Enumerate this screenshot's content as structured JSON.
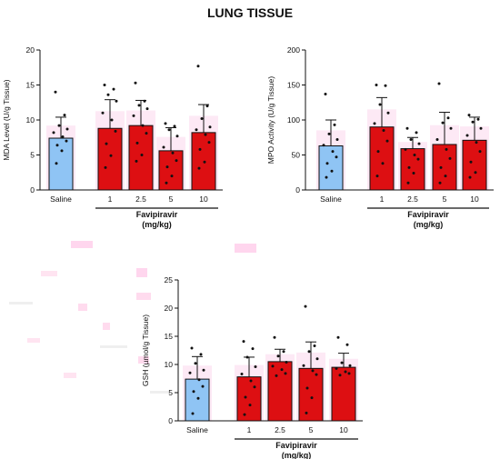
{
  "title": "LUNG TISSUE",
  "group_label": "Favipiravir",
  "group_unit": "(mg/kg)",
  "colors": {
    "saline": "#8fc4f4",
    "treated": "#dd0f12",
    "points": "#111111",
    "axis": "#111111"
  },
  "chart_data": [
    {
      "type": "bar",
      "ylabel": "MDA Level (U/g Tissue)",
      "ylim": [
        0,
        20
      ],
      "yticks": [
        0,
        5,
        10,
        15,
        20
      ],
      "categories": [
        "Saline",
        "1",
        "2.5",
        "5",
        "10"
      ],
      "values": [
        7.4,
        8.8,
        9.2,
        5.6,
        8.2
      ],
      "errors": [
        3.0,
        4.1,
        3.6,
        3.3,
        4.0
      ],
      "points": [
        [
          14.0,
          10.7,
          9.2,
          8.7,
          8.2,
          7.6,
          7.0,
          6.4,
          5.6,
          3.8
        ],
        [
          15.0,
          14.4,
          13.6,
          12.7,
          11.0,
          10.0,
          8.4,
          6.6,
          4.9,
          3.2
        ],
        [
          15.3,
          12.7,
          12.1,
          11.6,
          10.6,
          9.2,
          8.1,
          6.7,
          5.0,
          4.1
        ],
        [
          9.5,
          9.1,
          8.6,
          7.7,
          6.1,
          5.3,
          4.2,
          3.3,
          2.0,
          1.0
        ],
        [
          17.7,
          12.0,
          10.2,
          9.0,
          8.6,
          7.9,
          6.8,
          5.8,
          4.0,
          3.1
        ]
      ]
    },
    {
      "type": "bar",
      "ylabel": "MPO Activity (U/g Tissue)",
      "ylim": [
        0,
        200
      ],
      "yticks": [
        0,
        50,
        100,
        150,
        200
      ],
      "categories": [
        "Saline",
        "1",
        "2.5",
        "5",
        "10"
      ],
      "values": [
        63,
        90,
        59,
        65,
        71
      ],
      "errors": [
        37,
        42,
        16,
        46,
        33
      ],
      "points": [
        [
          137,
          93,
          80,
          72,
          64,
          55,
          47,
          38,
          27,
          18
        ],
        [
          150,
          149,
          122,
          110,
          95,
          85,
          70,
          55,
          38,
          20
        ],
        [
          88,
          82,
          72,
          66,
          58,
          50,
          44,
          32,
          24,
          10
        ],
        [
          152,
          103,
          96,
          88,
          72,
          58,
          45,
          32,
          20,
          10
        ],
        [
          107,
          101,
          97,
          88,
          78,
          68,
          55,
          40,
          25,
          18
        ]
      ]
    },
    {
      "type": "bar",
      "ylabel": "GSH (µmol/g Tissue)",
      "ylim": [
        0,
        25
      ],
      "yticks": [
        0,
        5,
        10,
        15,
        20,
        25
      ],
      "categories": [
        "Saline",
        "1",
        "2.5",
        "5",
        "10"
      ],
      "values": [
        7.4,
        7.8,
        10.5,
        9.3,
        9.5
      ],
      "errors": [
        4.0,
        3.5,
        2.2,
        4.7,
        2.5
      ],
      "points": [
        [
          12.9,
          11.8,
          10.2,
          9.0,
          8.5,
          7.3,
          6.1,
          5.2,
          4.0,
          1.3
        ],
        [
          14.1,
          12.8,
          11.3,
          9.6,
          8.3,
          7.1,
          6.0,
          4.2,
          2.8,
          1.1
        ],
        [
          14.8,
          12.3,
          11.5,
          10.4,
          9.7,
          9.1,
          8.4,
          8.0
        ],
        [
          20.3,
          13.3,
          12.3,
          11.0,
          9.8,
          8.9,
          8.2,
          5.8,
          4.1,
          1.4
        ],
        [
          14.8,
          13.5,
          10.3,
          9.8,
          9.3,
          8.7,
          8.4,
          8.1
        ]
      ]
    }
  ]
}
